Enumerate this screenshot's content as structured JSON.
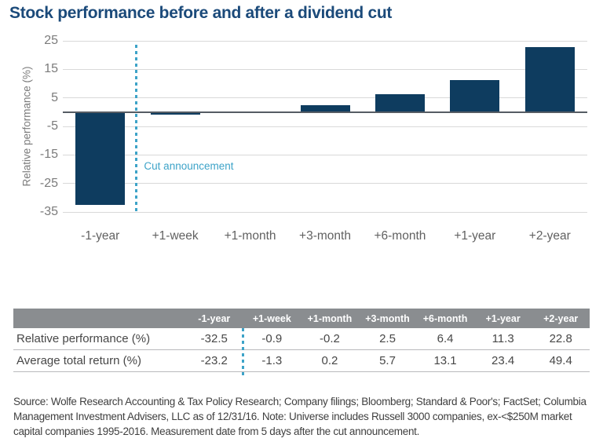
{
  "title": "Stock performance before and after a dividend cut",
  "colors": {
    "bar": "#0e3c5f",
    "title": "#1b4a7a",
    "teal": "#3da3c8",
    "gridline": "#d9d9d9",
    "zero_line": "#565c64",
    "table_header_bg": "#8a8d90",
    "axis_text": "#7b7b7b"
  },
  "chart_data": {
    "type": "bar",
    "categories": [
      "-1-year",
      "+1-week",
      "+1-month",
      "+3-month",
      "+6-month",
      "+1-year",
      "+2-year"
    ],
    "values": [
      -32.5,
      -0.9,
      -0.2,
      2.5,
      6.4,
      11.3,
      22.8
    ],
    "title": "Stock performance before and after a dividend cut",
    "xlabel": "",
    "ylabel": "Relative performance (%)",
    "ylim": [
      -35,
      25
    ],
    "yticks": [
      25,
      15,
      5,
      -5,
      -15,
      -25,
      -35
    ],
    "grid": true,
    "legend": false,
    "annotation": {
      "label": "Cut announcement",
      "type": "dashed-vertical-line",
      "between_categories": [
        "-1-year",
        "+1-week"
      ]
    }
  },
  "table": {
    "columns": [
      "",
      "-1-year",
      "+1-week",
      "+1-month",
      "+3-month",
      "+6-month",
      "+1-year",
      "+2-year"
    ],
    "rows": [
      {
        "label": "Relative performance (%)",
        "values": [
          "-32.5",
          "-0.9",
          "-0.2",
          "2.5",
          "6.4",
          "11.3",
          "22.8"
        ]
      },
      {
        "label": "Average total return (%)",
        "values": [
          "-23.2",
          "-1.3",
          "0.2",
          "5.7",
          "13.1",
          "23.4",
          "49.4"
        ]
      }
    ]
  },
  "footnote": "Source: Wolfe Research Accounting & Tax Policy Research; Company filings; Bloomberg; Standard & Poor's; FactSet; Columbia Management Investment Advisers, LLC as of 12/31/16. Note: Universe includes Russell 3000 companies, ex-<$250M market capital companies 1995-2016. Measurement date from 5 days after the cut announcement."
}
